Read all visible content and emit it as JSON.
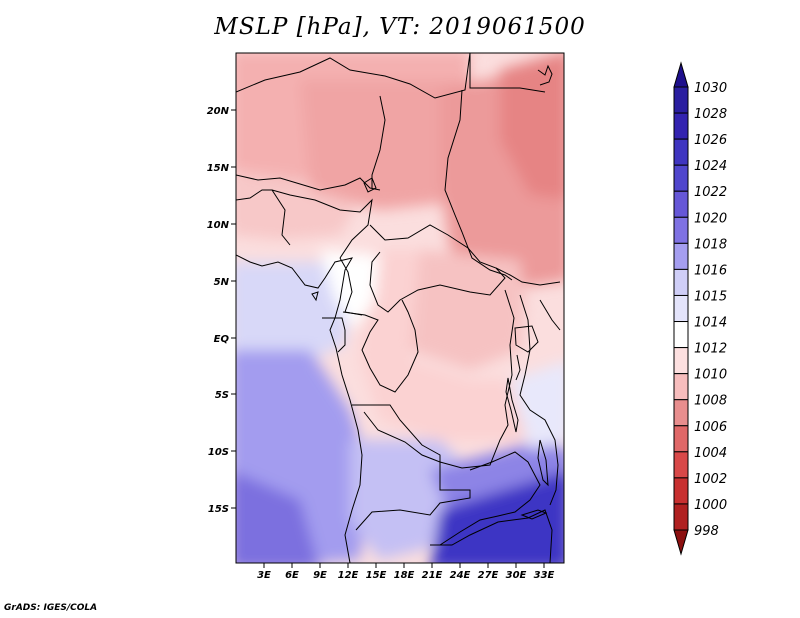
{
  "title": "MSLP [hPa], VT: 2019061500",
  "credit": "GrADS: IGES/COLA",
  "lat_labels": [
    "20N",
    "15N",
    "10N",
    "5N",
    "EQ",
    "5S",
    "10S",
    "15S"
  ],
  "lon_labels": [
    "3E",
    "6E",
    "9E",
    "12E",
    "15E",
    "18E",
    "21E",
    "24E",
    "27E",
    "30E",
    "33E"
  ],
  "colorbar": {
    "labels": [
      "1030",
      "1028",
      "1026",
      "1024",
      "1022",
      "1020",
      "1018",
      "1016",
      "1015",
      "1014",
      "1012",
      "1010",
      "1008",
      "1006",
      "1004",
      "1002",
      "1000",
      "998"
    ],
    "colors": [
      "#1e0f8c",
      "#2a1ea0",
      "#3323b0",
      "#3f35c0",
      "#5046cd",
      "#6657d7",
      "#7f72e3",
      "#a59ef0",
      "#cfcef7",
      "#e4e4fb",
      "#ffffff",
      "#fde0e0",
      "#f7bdbd",
      "#e88e8e",
      "#e06868",
      "#d84848",
      "#c83030",
      "#b02020",
      "#8c1010"
    ]
  },
  "regions": [
    {
      "name": "sahara-northwest",
      "color": "#f4b0b0"
    },
    {
      "name": "sahel-west",
      "color": "#f7c4c4"
    },
    {
      "name": "central-sahara",
      "color": "#f09a9a"
    },
    {
      "name": "sudan-east",
      "color": "#ec9898"
    },
    {
      "name": "nile-low",
      "color": "#e88080"
    },
    {
      "name": "gulf-of-guinea",
      "color": "#dcdcf8"
    },
    {
      "name": "congo-basin",
      "color": "#fbd8d8"
    },
    {
      "name": "lake-region",
      "color": "#f6c0c0"
    },
    {
      "name": "south-atlantic",
      "color": "#9c94ee"
    },
    {
      "name": "southern-africa-high",
      "color": "#3e34c4"
    }
  ]
}
